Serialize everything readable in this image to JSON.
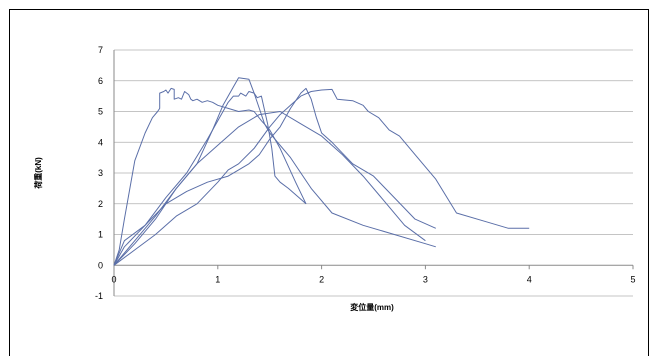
{
  "chart_data": {
    "type": "line",
    "title": "",
    "xlabel": "変位量(mm)",
    "ylabel": "荷重(kN)",
    "xlim": [
      0,
      5
    ],
    "ylim": [
      -1,
      7
    ],
    "x_ticks": [
      "0",
      "1",
      "2",
      "3",
      "4",
      "5"
    ],
    "y_ticks": [
      "-1",
      "0",
      "1",
      "2",
      "3",
      "4",
      "5",
      "6",
      "7"
    ],
    "grid": "horizontal",
    "legend": "none",
    "line_color": "#5b6fa8",
    "series": [
      {
        "points": [
          [
            0,
            0
          ],
          [
            0.05,
            0.5
          ],
          [
            0.1,
            1.5
          ],
          [
            0.2,
            3.4
          ],
          [
            0.3,
            4.3
          ],
          [
            0.37,
            4.8
          ],
          [
            0.42,
            5.0
          ],
          [
            0.44,
            5.1
          ],
          [
            0.44,
            5.4
          ],
          [
            0.44,
            5.6
          ],
          [
            0.48,
            5.65
          ],
          [
            0.5,
            5.7
          ],
          [
            0.52,
            5.6
          ],
          [
            0.55,
            5.75
          ],
          [
            0.58,
            5.72
          ],
          [
            0.58,
            5.4
          ],
          [
            0.62,
            5.45
          ],
          [
            0.65,
            5.4
          ],
          [
            0.68,
            5.65
          ],
          [
            0.72,
            5.55
          ],
          [
            0.74,
            5.4
          ],
          [
            0.76,
            5.35
          ],
          [
            0.8,
            5.4
          ],
          [
            0.85,
            5.3
          ],
          [
            0.9,
            5.35
          ],
          [
            0.95,
            5.3
          ],
          [
            1.0,
            5.2
          ],
          [
            1.1,
            5.1
          ],
          [
            1.2,
            5.0
          ],
          [
            1.3,
            5.05
          ],
          [
            1.35,
            5.0
          ],
          [
            1.42,
            4.7
          ],
          [
            1.5,
            4.4
          ],
          [
            1.6,
            3.8
          ],
          [
            1.75,
            2.7
          ],
          [
            1.85,
            2.0
          ]
        ]
      },
      {
        "points": [
          [
            0,
            0
          ],
          [
            0.1,
            0.6
          ],
          [
            0.3,
            1.3
          ],
          [
            0.5,
            2.2
          ],
          [
            0.7,
            3.0
          ],
          [
            0.9,
            4.1
          ],
          [
            1.05,
            5.0
          ],
          [
            1.1,
            5.3
          ],
          [
            1.15,
            5.5
          ],
          [
            1.2,
            5.5
          ],
          [
            1.22,
            5.6
          ],
          [
            1.27,
            5.5
          ],
          [
            1.3,
            5.65
          ],
          [
            1.35,
            5.6
          ],
          [
            1.38,
            5.45
          ],
          [
            1.42,
            5.5
          ],
          [
            1.48,
            4.6
          ],
          [
            1.52,
            3.8
          ],
          [
            1.55,
            2.9
          ],
          [
            1.6,
            2.7
          ],
          [
            1.68,
            2.5
          ],
          [
            1.85,
            2.0
          ]
        ]
      },
      {
        "points": [
          [
            0,
            0
          ],
          [
            0.1,
            0.8
          ],
          [
            0.3,
            1.3
          ],
          [
            0.5,
            2.0
          ],
          [
            0.7,
            2.4
          ],
          [
            0.9,
            2.7
          ],
          [
            1.1,
            2.9
          ],
          [
            1.2,
            3.1
          ],
          [
            1.3,
            3.3
          ],
          [
            1.4,
            3.6
          ],
          [
            1.5,
            4.1
          ],
          [
            1.6,
            4.5
          ],
          [
            1.7,
            5.1
          ],
          [
            1.8,
            5.6
          ],
          [
            1.85,
            5.75
          ],
          [
            1.9,
            5.4
          ],
          [
            1.95,
            4.8
          ],
          [
            2.0,
            4.3
          ],
          [
            2.1,
            4.0
          ],
          [
            2.3,
            3.3
          ],
          [
            2.5,
            2.9
          ],
          [
            2.7,
            2.2
          ],
          [
            2.9,
            1.5
          ],
          [
            3.1,
            1.2
          ]
        ]
      },
      {
        "points": [
          [
            0,
            0
          ],
          [
            0.2,
            0.5
          ],
          [
            0.4,
            1.0
          ],
          [
            0.6,
            1.6
          ],
          [
            0.8,
            2.0
          ],
          [
            1.0,
            2.7
          ],
          [
            1.1,
            3.1
          ],
          [
            1.2,
            3.3
          ],
          [
            1.35,
            3.8
          ],
          [
            1.5,
            4.5
          ],
          [
            1.6,
            4.9
          ],
          [
            1.7,
            5.2
          ],
          [
            1.8,
            5.5
          ],
          [
            1.9,
            5.65
          ],
          [
            2.0,
            5.7
          ],
          [
            2.1,
            5.72
          ],
          [
            2.15,
            5.4
          ],
          [
            2.3,
            5.35
          ],
          [
            2.4,
            5.2
          ],
          [
            2.45,
            5.0
          ],
          [
            2.55,
            4.8
          ],
          [
            2.65,
            4.4
          ],
          [
            2.75,
            4.2
          ],
          [
            2.9,
            3.6
          ],
          [
            3.1,
            2.8
          ],
          [
            3.3,
            1.7
          ],
          [
            3.6,
            1.4
          ],
          [
            3.8,
            1.2
          ],
          [
            4.0,
            1.2
          ]
        ]
      },
      {
        "points": [
          [
            0,
            0
          ],
          [
            0.2,
            0.8
          ],
          [
            0.4,
            1.6
          ],
          [
            0.6,
            2.5
          ],
          [
            0.8,
            3.3
          ],
          [
            0.95,
            4.4
          ],
          [
            1.05,
            5.2
          ],
          [
            1.15,
            5.8
          ],
          [
            1.2,
            6.1
          ],
          [
            1.3,
            6.05
          ],
          [
            1.35,
            5.6
          ],
          [
            1.4,
            5.1
          ],
          [
            1.45,
            4.6
          ],
          [
            1.5,
            4.3
          ],
          [
            1.7,
            3.5
          ],
          [
            1.9,
            2.5
          ],
          [
            2.1,
            1.7
          ],
          [
            2.4,
            1.3
          ],
          [
            2.7,
            1.0
          ],
          [
            3.0,
            0.7
          ],
          [
            3.1,
            0.6
          ]
        ]
      },
      {
        "points": [
          [
            0,
            0
          ],
          [
            0.2,
            0.7
          ],
          [
            0.4,
            1.5
          ],
          [
            0.6,
            2.5
          ],
          [
            0.8,
            3.3
          ],
          [
            1.0,
            3.9
          ],
          [
            1.2,
            4.5
          ],
          [
            1.4,
            4.9
          ],
          [
            1.6,
            5.0
          ],
          [
            1.8,
            4.6
          ],
          [
            2.0,
            4.2
          ],
          [
            2.2,
            3.6
          ],
          [
            2.4,
            2.9
          ],
          [
            2.6,
            2.1
          ],
          [
            2.8,
            1.3
          ],
          [
            3.0,
            0.8
          ]
        ]
      }
    ]
  }
}
